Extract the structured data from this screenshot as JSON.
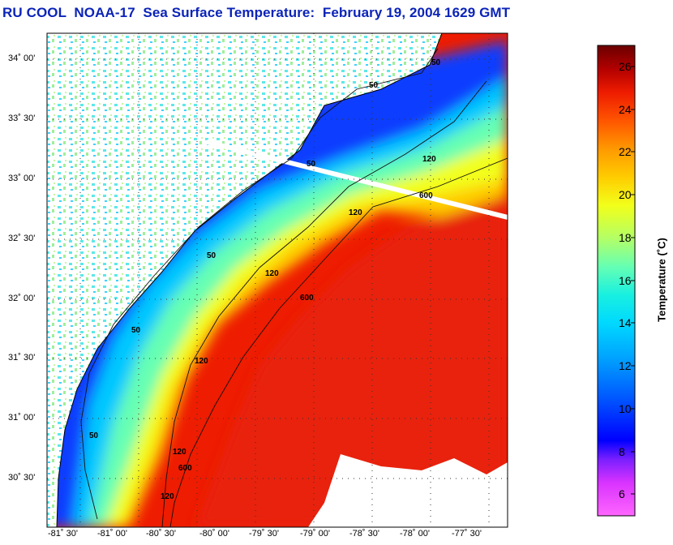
{
  "title": "RU COOL  NOAA-17  Sea Surface Temperature:  February 19, 2004 1629 GMT",
  "map": {
    "lat_labels": [
      "34˚ 00'",
      "33˚ 30'",
      "33˚ 00'",
      "32˚ 30'",
      "32˚ 00'",
      "31˚ 30'",
      "31˚ 00'",
      "30˚ 30'"
    ],
    "lon_labels": [
      "-81˚ 30'",
      "-81˚ 00'",
      "-80˚ 30'",
      "-80˚ 00'",
      "-79˚ 30'",
      "-79˚ 00'",
      "-78˚ 30'",
      "-78˚ 00'",
      "-77˚ 30'"
    ],
    "contour_labels": [
      "50",
      "50",
      "50",
      "50",
      "50",
      "50",
      "120",
      "120",
      "120",
      "120",
      "120",
      "120",
      "600",
      "600",
      "600"
    ]
  },
  "colorbar": {
    "title": "Temperature (˚C)",
    "ticks": [
      "26",
      "24",
      "22",
      "20",
      "18",
      "16",
      "14",
      "12",
      "10",
      "8",
      "6"
    ],
    "vmin": 5,
    "vmax": 27,
    "colors": [
      "#ff66ff",
      "#cc33ff",
      "#7a1fff",
      "#0000ff",
      "#0057ff",
      "#00a6ff",
      "#00d9ff",
      "#19f0e0",
      "#66ffb3",
      "#b3ff66",
      "#f2ff1a",
      "#ffcc00",
      "#ff9900",
      "#ff5500",
      "#ee1c00",
      "#b30000",
      "#6b0000"
    ]
  },
  "colors": {
    "title": "#0b24b8",
    "land": "#ffffff",
    "cold_shelf": "#1a4dff",
    "warm_stream": "#e8200f"
  }
}
